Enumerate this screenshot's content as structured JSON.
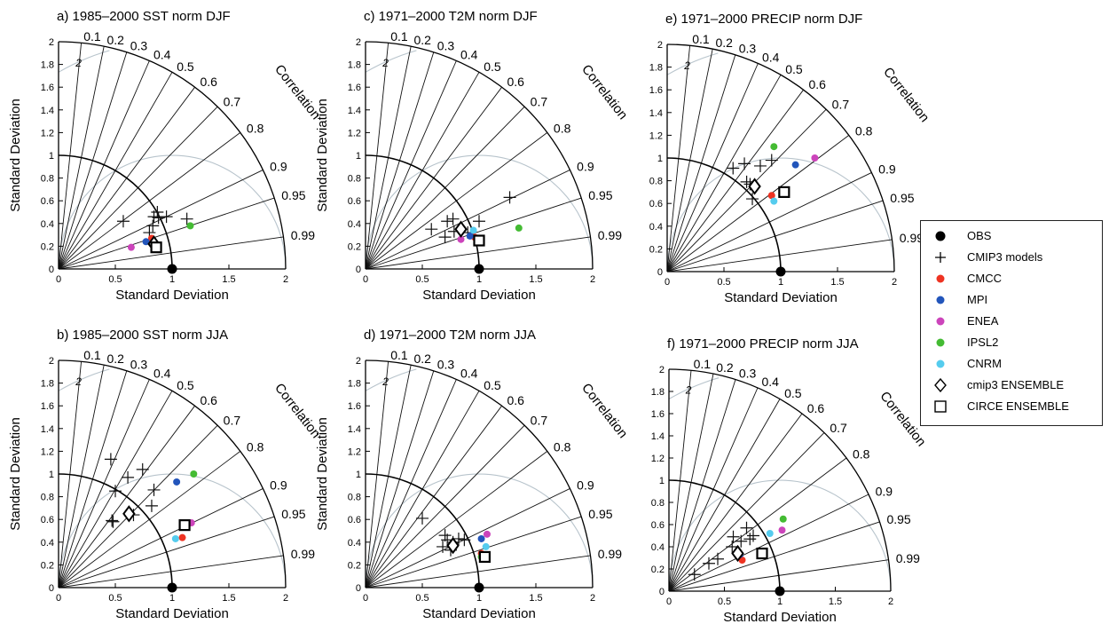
{
  "colors": {
    "OBS": "#000000",
    "CMCC": "#ee3322",
    "MPI": "#2255bb",
    "ENEA": "#cc44bb",
    "IPSL2": "#44bb33",
    "CNRM": "#55ccee"
  },
  "legend": {
    "items": [
      {
        "key": "OBS",
        "label": "OBS",
        "marker": "filled-circle",
        "color": "#000000"
      },
      {
        "key": "CMIP3",
        "label": "CMIP3 models",
        "marker": "plus",
        "color": "#000000"
      },
      {
        "key": "CMCC",
        "label": "CMCC",
        "marker": "filled-circle",
        "color": "#ee3322"
      },
      {
        "key": "MPI",
        "label": "MPI",
        "marker": "filled-circle",
        "color": "#2255bb"
      },
      {
        "key": "ENEA",
        "label": "ENEA",
        "marker": "filled-circle",
        "color": "#cc44bb"
      },
      {
        "key": "IPSL2",
        "label": "IPSL2",
        "marker": "filled-circle",
        "color": "#44bb33"
      },
      {
        "key": "CNRM",
        "label": "CNRM",
        "marker": "filled-circle",
        "color": "#55ccee"
      },
      {
        "key": "CMIP3_ENS",
        "label": "cmip3 ENSEMBLE",
        "marker": "diamond",
        "color": "#000000"
      },
      {
        "key": "CIRCE_ENS",
        "label": "CIRCE ENSEMBLE",
        "marker": "square",
        "color": "#000000"
      }
    ]
  },
  "chart_data": [
    {
      "id": "a",
      "type": "taylor-diagram",
      "title": "a) 1985–2000 SST norm DJF",
      "xlabel": "Standard Deviation",
      "ylabel": "Standard Deviation",
      "corr_label": "Correlation",
      "sd_range": [
        0,
        2
      ],
      "sd_ticks": [
        "0",
        "0.2",
        "0.4",
        "0.6",
        "0.8",
        "1",
        "1.2",
        "1.4",
        "1.6",
        "1.8",
        "2"
      ],
      "x_ticks": [
        "0",
        "0.5",
        "1",
        "1.5",
        "2"
      ],
      "corr_ticks": [
        "0.1",
        "0.2",
        "0.3",
        "0.4",
        "0.5",
        "0.6",
        "0.7",
        "0.8",
        "0.9",
        "0.95",
        "0.99"
      ],
      "rms_labels": [
        "2"
      ],
      "obs": [
        1.0,
        0.0
      ],
      "cmip3": [
        [
          0.57,
          0.42
        ],
        [
          0.8,
          0.32
        ],
        [
          0.83,
          0.38
        ],
        [
          0.84,
          0.46
        ],
        [
          0.87,
          0.5
        ],
        [
          0.88,
          0.45
        ],
        [
          0.95,
          0.46
        ],
        [
          1.13,
          0.44
        ]
      ],
      "models": {
        "CMCC": [
          0.82,
          0.27
        ],
        "MPI": [
          0.77,
          0.24
        ],
        "ENEA": [
          0.64,
          0.19
        ],
        "IPSL2": [
          1.16,
          0.38
        ],
        "CNRM": [
          0.83,
          0.23
        ]
      },
      "cmip3_ens": [
        0.84,
        0.22
      ],
      "circe_ens": [
        0.86,
        0.19
      ]
    },
    {
      "id": "b",
      "type": "taylor-diagram",
      "title": "b) 1985–2000 SST norm JJA",
      "xlabel": "Standard Deviation",
      "ylabel": "Standard Deviation",
      "corr_label": "Correlation",
      "sd_range": [
        0,
        2
      ],
      "sd_ticks": [
        "0",
        "0.2",
        "0.4",
        "0.6",
        "0.8",
        "1",
        "1.2",
        "1.4",
        "1.6",
        "1.8",
        "2"
      ],
      "x_ticks": [
        "0",
        "0.5",
        "1",
        "1.5",
        "2"
      ],
      "corr_ticks": [
        "0.1",
        "0.2",
        "0.3",
        "0.4",
        "0.5",
        "0.6",
        "0.7",
        "0.8",
        "0.9",
        "0.95",
        "0.99"
      ],
      "rms_labels": [
        "2"
      ],
      "obs": [
        1.0,
        0.0
      ],
      "cmip3": [
        [
          0.46,
          1.13
        ],
        [
          0.61,
          0.97
        ],
        [
          0.5,
          0.85
        ],
        [
          0.74,
          1.04
        ],
        [
          0.84,
          0.86
        ],
        [
          0.82,
          0.72
        ],
        [
          0.47,
          0.59
        ],
        [
          0.48,
          0.58
        ],
        [
          0.66,
          0.64
        ]
      ],
      "models": {
        "CMCC": [
          1.09,
          0.44
        ],
        "MPI": [
          1.04,
          0.93
        ],
        "ENEA": [
          1.17,
          0.57
        ],
        "IPSL2": [
          1.19,
          1.0
        ],
        "CNRM": [
          1.03,
          0.43
        ]
      },
      "cmip3_ens": [
        0.62,
        0.65
      ],
      "circe_ens": [
        1.11,
        0.55
      ]
    },
    {
      "id": "c",
      "type": "taylor-diagram",
      "title": "c) 1971–2000 T2M norm DJF",
      "xlabel": "Standard Deviation",
      "ylabel": "Standard Deviation",
      "corr_label": "Correlation",
      "sd_range": [
        0,
        2
      ],
      "sd_ticks": [
        "0",
        "0.2",
        "0.4",
        "0.6",
        "0.8",
        "1",
        "1.2",
        "1.4",
        "1.6",
        "1.8",
        "2"
      ],
      "x_ticks": [
        "0",
        "0.5",
        "1",
        "1.5",
        "2"
      ],
      "corr_ticks": [
        "0.1",
        "0.2",
        "0.3",
        "0.4",
        "0.5",
        "0.6",
        "0.7",
        "0.8",
        "0.9",
        "0.95",
        "0.99"
      ],
      "rms_labels": [
        "2"
      ],
      "obs": [
        1.0,
        0.0
      ],
      "cmip3": [
        [
          0.58,
          0.35
        ],
        [
          0.7,
          0.28
        ],
        [
          0.72,
          0.42
        ],
        [
          0.77,
          0.44
        ],
        [
          0.78,
          0.33
        ],
        [
          1.0,
          0.42
        ],
        [
          1.27,
          0.63
        ],
        [
          0.9,
          0.32
        ]
      ],
      "models": {
        "CMCC": [
          0.96,
          0.28
        ],
        "MPI": [
          0.92,
          0.29
        ],
        "ENEA": [
          0.84,
          0.26
        ],
        "IPSL2": [
          1.35,
          0.36
        ],
        "CNRM": [
          0.95,
          0.34
        ]
      },
      "cmip3_ens": [
        0.84,
        0.35
      ],
      "circe_ens": [
        1.0,
        0.25
      ]
    },
    {
      "id": "d",
      "type": "taylor-diagram",
      "title": "d) 1971–2000 T2M norm JJA",
      "xlabel": "Standard Deviation",
      "ylabel": "Standard Deviation",
      "corr_label": "Correlation",
      "sd_range": [
        0,
        2
      ],
      "sd_ticks": [
        "0",
        "0.2",
        "0.4",
        "0.6",
        "0.8",
        "1",
        "1.2",
        "1.4",
        "1.6",
        "1.8",
        "2"
      ],
      "x_ticks": [
        "0",
        "0.5",
        "1",
        "1.5",
        "2"
      ],
      "corr_ticks": [
        "0.1",
        "0.2",
        "0.3",
        "0.4",
        "0.5",
        "0.6",
        "0.7",
        "0.8",
        "0.9",
        "0.95",
        "0.99"
      ],
      "rms_labels": [
        "2"
      ],
      "obs": [
        1.0,
        0.0
      ],
      "cmip3": [
        [
          0.5,
          0.61
        ],
        [
          0.7,
          0.46
        ],
        [
          0.72,
          0.42
        ],
        [
          0.77,
          0.4
        ],
        [
          0.82,
          0.43
        ],
        [
          0.87,
          0.42
        ],
        [
          0.68,
          0.36
        ],
        [
          0.75,
          0.33
        ]
      ],
      "models": {
        "CMCC": [
          1.02,
          0.3
        ],
        "MPI": [
          1.02,
          0.43
        ],
        "ENEA": [
          1.07,
          0.47
        ],
        "IPSL2": [
          1.02,
          0.27
        ],
        "CNRM": [
          1.06,
          0.36
        ]
      },
      "cmip3_ens": [
        0.77,
        0.37
      ],
      "circe_ens": [
        1.05,
        0.27
      ]
    },
    {
      "id": "e",
      "type": "taylor-diagram",
      "title": "e) 1971–2000 PRECIP norm DJF",
      "xlabel": "Standard Deviation",
      "ylabel": "",
      "corr_label": "Correlation",
      "sd_range": [
        0,
        2
      ],
      "sd_ticks": [
        "0",
        "0.2",
        "0.4",
        "0.6",
        "0.8",
        "1",
        "1.2",
        "1.4",
        "1.6",
        "1.8",
        "2"
      ],
      "x_ticks": [
        "0",
        "0.5",
        "1",
        "1.5",
        "2"
      ],
      "corr_ticks": [
        "0.1",
        "0.2",
        "0.3",
        "0.4",
        "0.5",
        "0.6",
        "0.7",
        "0.8",
        "0.9",
        "0.95",
        "0.99"
      ],
      "rms_labels": [
        "2"
      ],
      "obs": [
        1.0,
        0.0
      ],
      "cmip3": [
        [
          0.58,
          0.91
        ],
        [
          0.68,
          0.95
        ],
        [
          0.82,
          0.93
        ],
        [
          0.92,
          0.98
        ],
        [
          0.7,
          0.79
        ],
        [
          0.75,
          0.64
        ],
        [
          0.73,
          0.77
        ]
      ],
      "models": {
        "CMCC": [
          0.92,
          0.67
        ],
        "MPI": [
          1.13,
          0.94
        ],
        "ENEA": [
          1.3,
          1.0
        ],
        "IPSL2": [
          0.94,
          1.1
        ],
        "CNRM": [
          0.94,
          0.62
        ]
      },
      "cmip3_ens": [
        0.77,
        0.75
      ],
      "circe_ens": [
        1.03,
        0.7
      ]
    },
    {
      "id": "f",
      "type": "taylor-diagram",
      "title": "f) 1971–2000 PRECIP norm JJA",
      "xlabel": "Standard Deviation",
      "ylabel": "",
      "corr_label": "Correlation",
      "sd_range": [
        0,
        2
      ],
      "sd_ticks": [
        "0",
        "0.2",
        "0.4",
        "0.6",
        "0.8",
        "1",
        "1.2",
        "1.4",
        "1.6",
        "1.8",
        "2"
      ],
      "x_ticks": [
        "0",
        "0.5",
        "1",
        "1.5",
        "2"
      ],
      "corr_ticks": [
        "0.1",
        "0.2",
        "0.3",
        "0.4",
        "0.5",
        "0.6",
        "0.7",
        "0.8",
        "0.9",
        "0.95",
        "0.99"
      ],
      "rms_labels": [
        "2"
      ],
      "obs": [
        1.0,
        0.0
      ],
      "cmip3": [
        [
          0.23,
          0.15
        ],
        [
          0.36,
          0.25
        ],
        [
          0.44,
          0.29
        ],
        [
          0.57,
          0.4
        ],
        [
          0.58,
          0.49
        ],
        [
          0.65,
          0.45
        ],
        [
          0.7,
          0.57
        ],
        [
          0.76,
          0.5
        ],
        [
          0.73,
          0.47
        ]
      ],
      "models": {
        "CMCC": [
          0.66,
          0.28
        ],
        "MPI": [
          0.64,
          0.33
        ],
        "ENEA": [
          1.02,
          0.55
        ],
        "IPSL2": [
          1.03,
          0.65
        ],
        "CNRM": [
          0.91,
          0.52
        ]
      },
      "cmip3_ens": [
        0.62,
        0.34
      ],
      "circe_ens": [
        0.84,
        0.34
      ]
    }
  ]
}
